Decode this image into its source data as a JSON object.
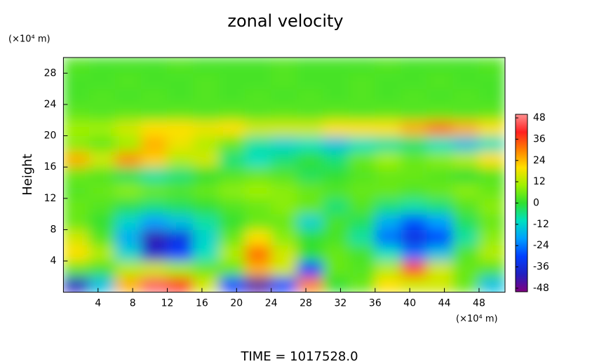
{
  "chart_data": {
    "type": "heatmap",
    "title": "zonal velocity",
    "y_label": "Height",
    "y_unit": "(×10⁴ m)",
    "x_unit": "(×10⁴ m)",
    "footer": "TIME = 1017528.0",
    "x": [
      1.5,
      4.5,
      7.5,
      10.5,
      13.5,
      16.5,
      19.5,
      22.5,
      25.5,
      28.5,
      31.5,
      34.5,
      37.5,
      40.5,
      43.5,
      46.5,
      49.5
    ],
    "y": [
      1,
      3,
      5,
      7,
      9,
      11,
      13,
      15,
      17,
      19,
      21,
      23,
      25,
      27,
      29
    ],
    "z": [
      [
        -40,
        -15,
        25,
        45,
        38,
        15,
        -30,
        -45,
        -30,
        30,
        0,
        5,
        20,
        15,
        15,
        5,
        -15
      ],
      [
        5,
        2,
        12,
        15,
        10,
        5,
        5,
        25,
        15,
        -30,
        5,
        3,
        12,
        35,
        15,
        5,
        3
      ],
      [
        20,
        12,
        -12,
        -38,
        -30,
        -10,
        12,
        32,
        15,
        0,
        5,
        2,
        -10,
        -25,
        -15,
        3,
        12
      ],
      [
        15,
        3,
        -18,
        -42,
        -35,
        -12,
        5,
        20,
        8,
        0,
        2,
        -8,
        -25,
        -35,
        -30,
        -8,
        8
      ],
      [
        5,
        0,
        -12,
        -20,
        -15,
        -8,
        0,
        5,
        5,
        -12,
        2,
        -3,
        -18,
        -28,
        -20,
        -3,
        5
      ],
      [
        5,
        3,
        -2,
        -5,
        -3,
        0,
        3,
        5,
        8,
        5,
        -5,
        3,
        -5,
        -8,
        -5,
        3,
        8
      ],
      [
        3,
        5,
        8,
        5,
        3,
        5,
        8,
        10,
        8,
        5,
        3,
        5,
        5,
        3,
        5,
        8,
        5
      ],
      [
        5,
        3,
        -3,
        -8,
        -5,
        0,
        3,
        5,
        3,
        -3,
        0,
        3,
        5,
        5,
        3,
        0,
        3
      ],
      [
        25,
        15,
        28,
        22,
        12,
        15,
        -5,
        -10,
        -5,
        0,
        -5,
        5,
        10,
        5,
        8,
        12,
        20
      ],
      [
        8,
        5,
        10,
        25,
        18,
        12,
        5,
        -8,
        -12,
        -10,
        -15,
        -10,
        -8,
        -5,
        -10,
        -15,
        -10
      ],
      [
        10,
        10,
        15,
        20,
        20,
        18,
        20,
        15,
        15,
        15,
        20,
        20,
        20,
        25,
        30,
        25,
        20
      ],
      [
        4,
        3,
        4,
        3,
        4,
        3,
        4,
        3,
        4,
        3,
        4,
        3,
        4,
        3,
        4,
        3,
        4
      ],
      [
        2,
        3,
        2,
        3,
        2,
        3,
        2,
        3,
        2,
        3,
        2,
        3,
        2,
        3,
        2,
        3,
        2
      ],
      [
        2,
        2,
        3,
        2,
        2,
        3,
        2,
        2,
        3,
        2,
        2,
        3,
        2,
        2,
        3,
        2,
        2
      ],
      [
        3,
        2,
        2,
        2,
        3,
        2,
        2,
        2,
        3,
        2,
        2,
        2,
        3,
        2,
        2,
        2,
        3
      ]
    ],
    "xlim": [
      0,
      51
    ],
    "ylim": [
      0,
      30
    ],
    "xticks": [
      4,
      8,
      12,
      16,
      20,
      24,
      28,
      32,
      36,
      40,
      44,
      48
    ],
    "yticks": [
      4,
      8,
      12,
      16,
      20,
      24,
      28
    ],
    "clim": [
      -50,
      50
    ],
    "cticks": [
      -48,
      -36,
      -24,
      -12,
      0,
      12,
      24,
      36,
      48
    ],
    "colorscale": [
      [
        -50,
        "#800080"
      ],
      [
        -40,
        "#2020c0"
      ],
      [
        -30,
        "#0040ff"
      ],
      [
        -20,
        "#00a0ff"
      ],
      [
        -10,
        "#00e0c0"
      ],
      [
        0,
        "#30e030"
      ],
      [
        10,
        "#a0f000"
      ],
      [
        20,
        "#ffe000"
      ],
      [
        30,
        "#ff8000"
      ],
      [
        40,
        "#ff2020"
      ],
      [
        50,
        "#ff9090"
      ]
    ]
  }
}
